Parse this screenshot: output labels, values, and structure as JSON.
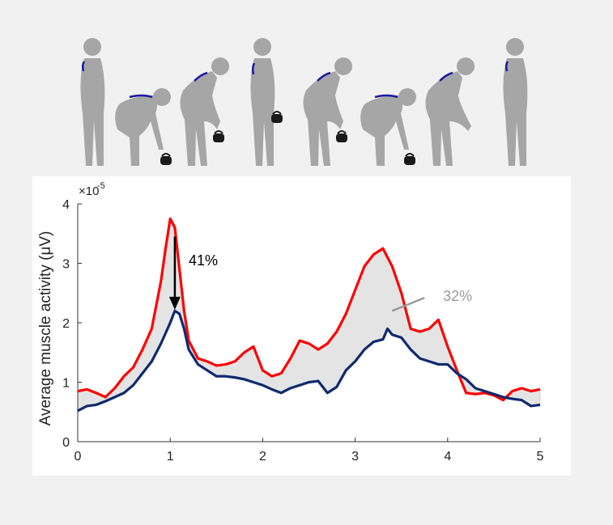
{
  "figure_strip": {
    "description_icons": [
      "standing-figure-icon",
      "squat-lift-figure-icon",
      "hinge-lift-figure-icon",
      "standing-holding-kettlebell-icon",
      "hinge-lower-figure-icon",
      "squat-lower-figure-icon",
      "hinge-release-figure-icon",
      "standing-figure-icon"
    ],
    "figure_color": "#a6a6a6",
    "spine_highlight_color": "#1a1aa6",
    "kettlebell_color": "#1a1a1a"
  },
  "chart_data": {
    "type": "line",
    "xlabel": "",
    "ylabel": "Average muscle activity (μV)",
    "y_scale_note": "×10",
    "y_scale_exponent": "-5",
    "xlim": [
      0,
      5
    ],
    "ylim": [
      0,
      4
    ],
    "x_ticks": [
      "0",
      "1",
      "2",
      "3",
      "4",
      "5"
    ],
    "y_ticks": [
      "0",
      "1",
      "2",
      "3",
      "4"
    ],
    "grid": false,
    "legend": "none",
    "series": [
      {
        "color": "#ff0000",
        "x": [
          0,
          0.1,
          0.2,
          0.3,
          0.4,
          0.5,
          0.6,
          0.7,
          0.8,
          0.9,
          0.95,
          1.0,
          1.05,
          1.1,
          1.15,
          1.2,
          1.3,
          1.4,
          1.5,
          1.6,
          1.7,
          1.8,
          1.9,
          2.0,
          2.1,
          2.2,
          2.3,
          2.4,
          2.5,
          2.6,
          2.7,
          2.8,
          2.9,
          3.0,
          3.1,
          3.2,
          3.3,
          3.4,
          3.5,
          3.6,
          3.7,
          3.8,
          3.9,
          4.0,
          4.1,
          4.2,
          4.3,
          4.4,
          4.5,
          4.6,
          4.7,
          4.8,
          4.9,
          5.0
        ],
        "values": [
          0.85,
          0.88,
          0.82,
          0.75,
          0.9,
          1.1,
          1.25,
          1.55,
          1.9,
          2.7,
          3.25,
          3.75,
          3.6,
          2.9,
          2.2,
          1.7,
          1.4,
          1.35,
          1.28,
          1.3,
          1.35,
          1.5,
          1.6,
          1.2,
          1.1,
          1.15,
          1.4,
          1.7,
          1.65,
          1.55,
          1.65,
          1.85,
          2.15,
          2.55,
          2.95,
          3.15,
          3.25,
          2.95,
          2.5,
          1.9,
          1.85,
          1.9,
          2.05,
          1.6,
          1.2,
          0.82,
          0.8,
          0.82,
          0.78,
          0.7,
          0.85,
          0.9,
          0.85,
          0.88
        ]
      },
      {
        "color": "#0f2a6e",
        "x": [
          0,
          0.1,
          0.2,
          0.3,
          0.4,
          0.5,
          0.6,
          0.7,
          0.8,
          0.9,
          1.0,
          1.05,
          1.1,
          1.15,
          1.2,
          1.3,
          1.4,
          1.5,
          1.6,
          1.7,
          1.8,
          1.9,
          2.0,
          2.1,
          2.2,
          2.3,
          2.4,
          2.5,
          2.6,
          2.7,
          2.8,
          2.9,
          3.0,
          3.1,
          3.2,
          3.3,
          3.35,
          3.4,
          3.5,
          3.6,
          3.7,
          3.8,
          3.9,
          4.0,
          4.1,
          4.2,
          4.3,
          4.4,
          4.5,
          4.6,
          4.7,
          4.8,
          4.9,
          5.0
        ],
        "values": [
          0.52,
          0.6,
          0.62,
          0.68,
          0.75,
          0.82,
          0.95,
          1.15,
          1.35,
          1.65,
          2.0,
          2.2,
          2.15,
          1.9,
          1.55,
          1.3,
          1.2,
          1.1,
          1.1,
          1.08,
          1.05,
          1.0,
          0.95,
          0.88,
          0.82,
          0.9,
          0.95,
          1.0,
          1.02,
          0.82,
          0.92,
          1.2,
          1.35,
          1.55,
          1.68,
          1.72,
          1.9,
          1.8,
          1.75,
          1.55,
          1.4,
          1.35,
          1.3,
          1.3,
          1.15,
          1.05,
          0.9,
          0.85,
          0.8,
          0.75,
          0.72,
          0.7,
          0.6,
          0.62
        ]
      }
    ],
    "annotations": [
      {
        "text": "41%",
        "x": 1.2,
        "y": 3.05,
        "color": "#000000"
      },
      {
        "text": "32%",
        "x": 3.95,
        "y": 2.45,
        "color": "#9a9a9a"
      }
    ],
    "arrow": {
      "x": 1.05,
      "y_from": 3.45,
      "y_to": 2.22
    },
    "pointer_line": {
      "x_from": 3.4,
      "y_from": 2.2,
      "x_to": 3.75,
      "y_to": 2.42
    },
    "fill_between_color": "#e4e4e4"
  }
}
